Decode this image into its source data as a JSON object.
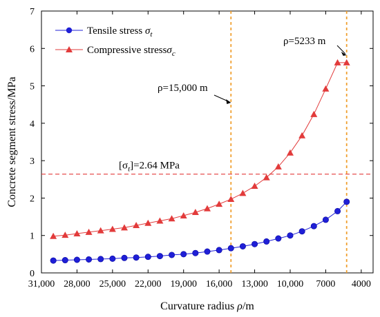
{
  "chart_data": {
    "type": "line",
    "xlabel_main": "Curvature radius ",
    "xlabel_symbol": "ρ",
    "xlabel_unit": "/m",
    "ylabel": "Concrete segment stress/MPa",
    "xlim": [
      31000,
      3000
    ],
    "ylim": [
      0,
      7
    ],
    "x_ticks": [
      31000,
      28000,
      25000,
      22000,
      19000,
      16000,
      13000,
      10000,
      7000,
      4000
    ],
    "x_tick_labels": [
      "31,000",
      "28,000",
      "25,000",
      "22,000",
      "19,000",
      "16,000",
      "13,000",
      "10,000",
      "7000",
      "4000"
    ],
    "y_ticks": [
      0,
      1,
      2,
      3,
      4,
      5,
      6,
      7
    ],
    "y_tick_labels": [
      "0",
      "1",
      "2",
      "3",
      "4",
      "5",
      "6",
      "7"
    ],
    "series": [
      {
        "name": "Tensile stress σt",
        "marker": "circle",
        "color": "#1f1fd6",
        "x": [
          30000,
          29000,
          28000,
          27000,
          26000,
          25000,
          24000,
          23000,
          22000,
          21000,
          20000,
          19000,
          18000,
          17000,
          16000,
          15000,
          14000,
          13000,
          12000,
          11000,
          10000,
          9000,
          8000,
          7000,
          6000,
          5233
        ],
        "values": [
          0.33,
          0.34,
          0.35,
          0.36,
          0.37,
          0.38,
          0.4,
          0.41,
          0.43,
          0.45,
          0.48,
          0.5,
          0.53,
          0.57,
          0.61,
          0.66,
          0.71,
          0.77,
          0.84,
          0.92,
          1.0,
          1.11,
          1.25,
          1.42,
          1.65,
          1.9
        ]
      },
      {
        "name": "Compressive stress σc",
        "marker": "triangle",
        "color": "#e23b3b",
        "x": [
          30000,
          29000,
          28000,
          27000,
          26000,
          25000,
          24000,
          23000,
          22000,
          21000,
          20000,
          19000,
          18000,
          17000,
          16000,
          15000,
          14000,
          13000,
          12000,
          11000,
          10000,
          9000,
          8000,
          7000,
          6000,
          5233
        ],
        "values": [
          0.98,
          1.01,
          1.05,
          1.09,
          1.13,
          1.17,
          1.21,
          1.27,
          1.33,
          1.39,
          1.45,
          1.53,
          1.62,
          1.72,
          1.84,
          1.97,
          2.13,
          2.32,
          2.55,
          2.84,
          3.21,
          3.67,
          4.24,
          4.92,
          5.62,
          5.62
        ]
      }
    ],
    "reference_lines": {
      "horizontal": {
        "y": 2.64,
        "color": "#e23b3b",
        "label_parts": [
          "[σ",
          "t",
          "]=2.64 MPa"
        ]
      },
      "vertical": [
        {
          "x": 15000,
          "color": "#f0a030",
          "label": "ρ=15,000 m"
        },
        {
          "x": 5233,
          "color": "#f0a030",
          "label": "ρ=5233 m"
        }
      ]
    },
    "legend": {
      "placement": "top-left",
      "entries": [
        {
          "text": "Tensile stress ",
          "symbol": "σ",
          "sub": "t"
        },
        {
          "text": "Compressive stress",
          "symbol": "σ",
          "sub": "c"
        }
      ]
    },
    "grid": false
  }
}
